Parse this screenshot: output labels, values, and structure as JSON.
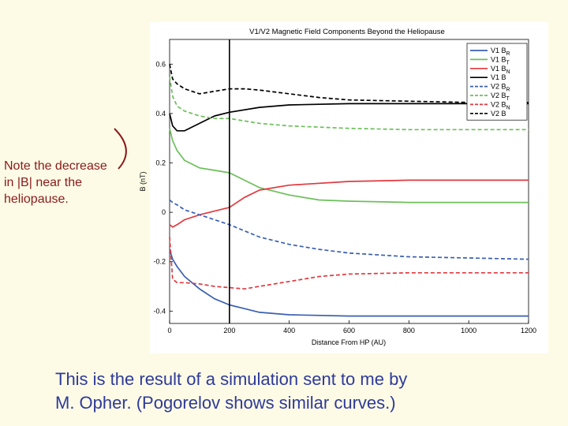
{
  "note": {
    "lines": [
      "Note the decrease",
      "in |B| near the",
      "heliopause."
    ]
  },
  "caption": {
    "lines": [
      "This is the result of a simulation sent to me by",
      "M. Opher. (Pogorelov shows similar curves.)"
    ]
  },
  "chart_data": {
    "type": "line",
    "title": "V1/V2 Magnetic Field Components Beyond the Heliopause",
    "xlabel": "Distance From HP (AU)",
    "ylabel": "B (nT)",
    "xlim": [
      0,
      1200
    ],
    "ylim": [
      -0.45,
      0.7
    ],
    "x_ticks": [
      0,
      200,
      400,
      600,
      800,
      1000,
      1200
    ],
    "x_tick_labels": [
      "0",
      "200",
      "400",
      "600",
      "800",
      "1000",
      "1200"
    ],
    "y_ticks": [
      -0.4,
      -0.2,
      0,
      0.2,
      0.4,
      0.6
    ],
    "y_tick_labels": [
      "-0.4",
      "-0.2",
      "0",
      "0.2",
      "0.4",
      "0.6"
    ],
    "vertical_line_x": 200,
    "grid": false,
    "legend_position": "top-right",
    "series": [
      {
        "name": "V1 B",
        "sub": "R",
        "color": "#3a5fb0",
        "dash": false,
        "points": [
          [
            0,
            -0.15
          ],
          [
            10,
            -0.19
          ],
          [
            25,
            -0.22
          ],
          [
            50,
            -0.26
          ],
          [
            100,
            -0.31
          ],
          [
            150,
            -0.35
          ],
          [
            200,
            -0.375
          ],
          [
            250,
            -0.39
          ],
          [
            300,
            -0.405
          ],
          [
            400,
            -0.415
          ],
          [
            600,
            -0.42
          ],
          [
            800,
            -0.42
          ],
          [
            1000,
            -0.42
          ],
          [
            1200,
            -0.42
          ]
        ]
      },
      {
        "name": "V1 B",
        "sub": "T",
        "color": "#6cbf5a",
        "dash": false,
        "points": [
          [
            0,
            0.34
          ],
          [
            10,
            0.29
          ],
          [
            25,
            0.25
          ],
          [
            50,
            0.21
          ],
          [
            100,
            0.18
          ],
          [
            150,
            0.17
          ],
          [
            200,
            0.16
          ],
          [
            250,
            0.13
          ],
          [
            300,
            0.1
          ],
          [
            400,
            0.07
          ],
          [
            500,
            0.05
          ],
          [
            600,
            0.045
          ],
          [
            800,
            0.04
          ],
          [
            1000,
            0.04
          ],
          [
            1200,
            0.04
          ]
        ]
      },
      {
        "name": "V1 B",
        "sub": "N",
        "color": "#e0393f",
        "dash": false,
        "points": [
          [
            0,
            -0.05
          ],
          [
            10,
            -0.06
          ],
          [
            25,
            -0.05
          ],
          [
            50,
            -0.03
          ],
          [
            100,
            -0.01
          ],
          [
            150,
            0.005
          ],
          [
            200,
            0.02
          ],
          [
            250,
            0.06
          ],
          [
            300,
            0.09
          ],
          [
            400,
            0.11
          ],
          [
            600,
            0.125
          ],
          [
            800,
            0.13
          ],
          [
            1000,
            0.13
          ],
          [
            1200,
            0.13
          ]
        ]
      },
      {
        "name": "V1 B",
        "sub": "",
        "color": "#000000",
        "dash": false,
        "points": [
          [
            0,
            0.4
          ],
          [
            10,
            0.35
          ],
          [
            25,
            0.33
          ],
          [
            50,
            0.33
          ],
          [
            100,
            0.36
          ],
          [
            150,
            0.39
          ],
          [
            200,
            0.405
          ],
          [
            300,
            0.425
          ],
          [
            400,
            0.435
          ],
          [
            600,
            0.44
          ],
          [
            800,
            0.44
          ],
          [
            1000,
            0.44
          ],
          [
            1200,
            0.44
          ]
        ]
      },
      {
        "name": "V2 B",
        "sub": "R",
        "color": "#3a5fb0",
        "dash": true,
        "points": [
          [
            0,
            0.05
          ],
          [
            10,
            0.04
          ],
          [
            25,
            0.03
          ],
          [
            50,
            0.01
          ],
          [
            100,
            -0.01
          ],
          [
            150,
            -0.03
          ],
          [
            200,
            -0.05
          ],
          [
            300,
            -0.1
          ],
          [
            400,
            -0.13
          ],
          [
            500,
            -0.15
          ],
          [
            600,
            -0.165
          ],
          [
            800,
            -0.18
          ],
          [
            1000,
            -0.185
          ],
          [
            1200,
            -0.19
          ]
        ]
      },
      {
        "name": "V2 B",
        "sub": "T",
        "color": "#6cbf5a",
        "dash": true,
        "points": [
          [
            0,
            0.55
          ],
          [
            10,
            0.47
          ],
          [
            25,
            0.43
          ],
          [
            50,
            0.41
          ],
          [
            100,
            0.39
          ],
          [
            150,
            0.38
          ],
          [
            200,
            0.38
          ],
          [
            300,
            0.36
          ],
          [
            400,
            0.35
          ],
          [
            600,
            0.34
          ],
          [
            800,
            0.335
          ],
          [
            1000,
            0.335
          ],
          [
            1200,
            0.335
          ]
        ]
      },
      {
        "name": "V2 B",
        "sub": "N",
        "color": "#e0393f",
        "dash": true,
        "points": [
          [
            0,
            -0.1
          ],
          [
            10,
            -0.27
          ],
          [
            25,
            -0.285
          ],
          [
            50,
            -0.285
          ],
          [
            100,
            -0.29
          ],
          [
            150,
            -0.3
          ],
          [
            200,
            -0.305
          ],
          [
            250,
            -0.31
          ],
          [
            300,
            -0.3
          ],
          [
            400,
            -0.28
          ],
          [
            500,
            -0.26
          ],
          [
            600,
            -0.25
          ],
          [
            800,
            -0.245
          ],
          [
            1000,
            -0.245
          ],
          [
            1200,
            -0.245
          ]
        ]
      },
      {
        "name": "V2 B",
        "sub": "",
        "color": "#000000",
        "dash": true,
        "points": [
          [
            0,
            0.6
          ],
          [
            10,
            0.54
          ],
          [
            25,
            0.52
          ],
          [
            50,
            0.5
          ],
          [
            100,
            0.48
          ],
          [
            150,
            0.49
          ],
          [
            200,
            0.5
          ],
          [
            250,
            0.5
          ],
          [
            300,
            0.495
          ],
          [
            400,
            0.48
          ],
          [
            500,
            0.465
          ],
          [
            600,
            0.455
          ],
          [
            800,
            0.45
          ],
          [
            1000,
            0.445
          ],
          [
            1200,
            0.445
          ]
        ]
      }
    ]
  }
}
